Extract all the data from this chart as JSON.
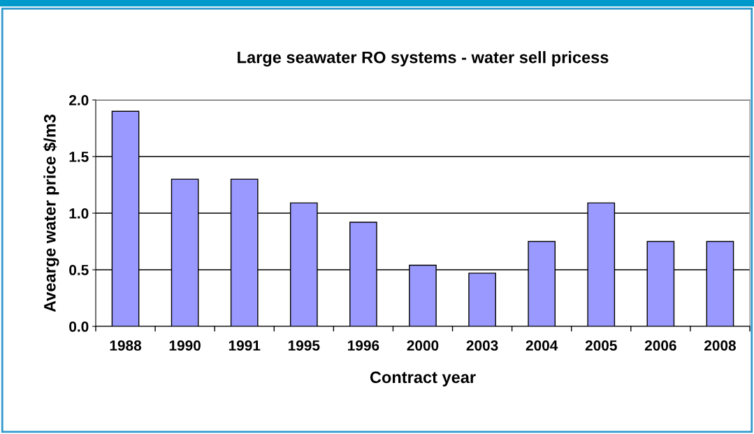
{
  "chart_data": {
    "type": "bar",
    "title": "Large seawater RO systems - water sell pricess",
    "xlabel": "Contract year",
    "ylabel": "Avearge water price $/m3",
    "categories": [
      "1988",
      "1990",
      "1991",
      "1995",
      "1996",
      "2000",
      "2003",
      "2004",
      "2005",
      "2006",
      "2008"
    ],
    "values": [
      1.9,
      1.3,
      1.3,
      1.09,
      0.92,
      0.54,
      0.47,
      0.75,
      1.09,
      0.75,
      0.75
    ],
    "color": "#9999ff",
    "ylim": [
      0,
      2.0
    ],
    "yticks": [
      {
        "value": 0,
        "label": "0.0"
      },
      {
        "value": 0.5,
        "label": "0.5"
      },
      {
        "value": 1.0,
        "label": "1.0"
      },
      {
        "value": 1.5,
        "label": "1.5"
      },
      {
        "value": 2.0,
        "label": "2.0"
      }
    ],
    "grid": "y",
    "legend": false
  }
}
